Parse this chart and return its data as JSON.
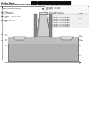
{
  "bg_color": "#ffffff",
  "gray_light": "#c8c8c8",
  "gray_mid": "#a8a8a8",
  "gray_dark": "#888888",
  "outline": "#555555",
  "text_dark": "#222222",
  "text_mid": "#444444",
  "barcode_color": "#111111",
  "abstract_bg": "#f0f0f0",
  "substrate_fill": "#b0b0b0",
  "substrate_top": "#c0c0c0",
  "pillar_fill": "#d0d0d0",
  "pillar_shade": "#9a9a9a",
  "gate_fill": "#888888",
  "recess_fill": "#d8d8d8"
}
